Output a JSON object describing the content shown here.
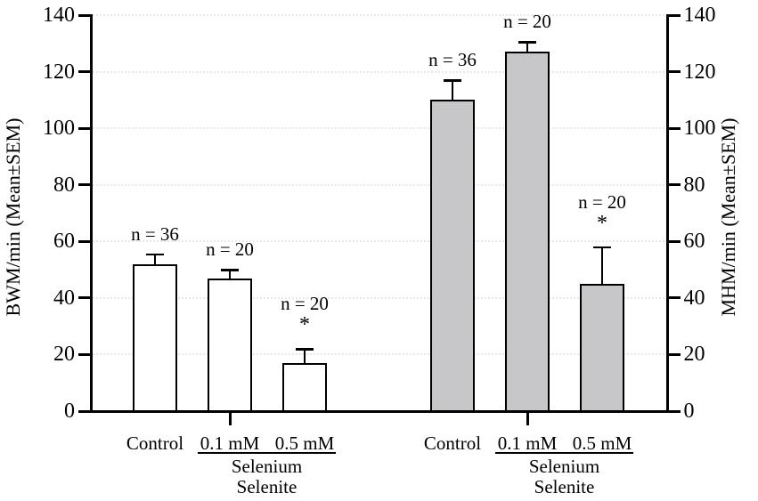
{
  "chart_data": {
    "type": "bar",
    "title": "",
    "axes": {
      "left": {
        "label": "BWM/min (Mean±SEM)",
        "min": 0,
        "max": 140,
        "tick_step": 20,
        "ticks": [
          0,
          20,
          40,
          60,
          80,
          100,
          120,
          140
        ]
      },
      "right": {
        "label": "MHM/min (Mean±SEM)",
        "min": 0,
        "max": 140,
        "tick_step": 20,
        "ticks": [
          0,
          20,
          40,
          60,
          80,
          100,
          120,
          140
        ]
      }
    },
    "grid": {
      "show": true,
      "style": "dotted",
      "color": "#eae6e3"
    },
    "legend": "none",
    "significance_marker": "*",
    "groups": [
      {
        "series": "BWM/min",
        "bar_fill": "#ffffff",
        "stipple": false,
        "treatment_label": [
          "Selenium",
          "Selenite"
        ],
        "bars": [
          {
            "category": "Control",
            "value": 52,
            "sem": 3.5,
            "n_label": "n = 36",
            "significant": false
          },
          {
            "category": "0.1 mM",
            "value": 47,
            "sem": 3,
            "n_label": "n = 20",
            "significant": false
          },
          {
            "category": "0.5 mM",
            "value": 17,
            "sem": 5,
            "n_label": "n = 20",
            "significant": true
          }
        ]
      },
      {
        "series": "MHM/min",
        "bar_fill": "#c7c7ca",
        "stipple": true,
        "treatment_label": [
          "Selenium",
          "Selenite"
        ],
        "bars": [
          {
            "category": "Control",
            "value": 110,
            "sem": 7,
            "n_label": "n = 36",
            "significant": false
          },
          {
            "category": "0.1 mM",
            "value": 127,
            "sem": 3.5,
            "n_label": "n = 20",
            "significant": false
          },
          {
            "category": "0.5 mM",
            "value": 45,
            "sem": 13,
            "n_label": "n = 20",
            "significant": true
          }
        ]
      }
    ],
    "colors": {
      "axis": "#000000",
      "text": "#000000",
      "error_bar": "#000000",
      "stipple_dot": "#8de6cc"
    }
  }
}
